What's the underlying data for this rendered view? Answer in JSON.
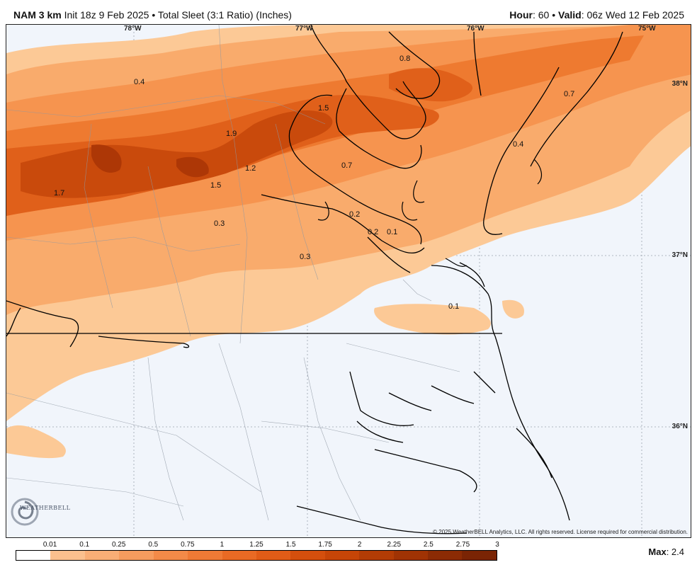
{
  "header": {
    "model": "NAM 3 km",
    "init": "Init 18z 9 Feb 2025",
    "bullet": "•",
    "product": "Total Sleet (3:1 Ratio) (Inches)",
    "hour_label": "Hour",
    "hour_value": ": 60",
    "valid_label": "Valid",
    "valid_value": ": 06z Wed 12 Feb 2025"
  },
  "map": {
    "lon_labels": [
      "78°W",
      "77°W",
      "76°W",
      "75°W"
    ],
    "lat_labels": [
      "38°N",
      "37°N",
      "36°N"
    ],
    "contour_values": [
      "0.4",
      "0.8",
      "1.5",
      "0.7",
      "1.9",
      "0.4",
      "1.2",
      "0.7",
      "1.5",
      "1.7",
      "0.2",
      "0.3",
      "0.2",
      "0.1",
      "0.3",
      "0.1"
    ],
    "copyright": "© 2025 WeatherBELL Analytics, LLC. All rights reserved. License required for commercial distribution.",
    "logo_text": "WEATHERBELL",
    "logo_icon": "swirl-logo-icon"
  },
  "legend": {
    "ticks": [
      "0.01",
      "0.1",
      "0.25",
      "0.5",
      "0.75",
      "1",
      "1.25",
      "1.5",
      "1.75",
      "2",
      "2.25",
      "2.5",
      "2.75",
      "3"
    ],
    "colors": [
      "#ffffff",
      "#fbc08e",
      "#f9ae76",
      "#f69c5e",
      "#f38a48",
      "#ef7a35",
      "#e96a24",
      "#e15c17",
      "#d44f0d",
      "#c64507",
      "#b33c05",
      "#a03304",
      "#8c2b04",
      "#7a2404"
    ],
    "max_label": "Max",
    "max_value": ": 2.4"
  }
}
